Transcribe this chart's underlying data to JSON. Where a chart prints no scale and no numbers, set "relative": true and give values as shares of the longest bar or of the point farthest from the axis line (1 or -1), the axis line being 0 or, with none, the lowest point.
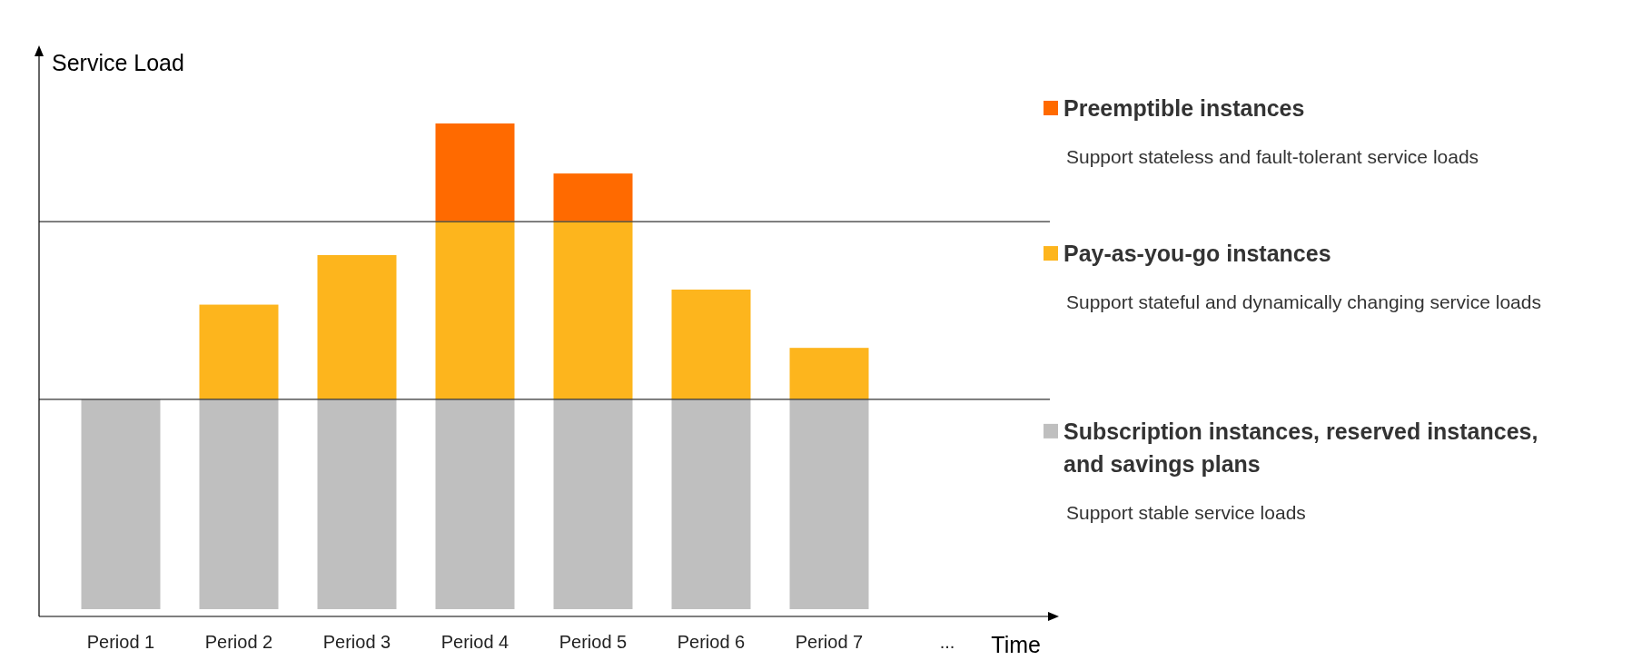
{
  "chart_data": {
    "type": "bar",
    "stacked": true,
    "legend": "right",
    "relative": true,
    "xlabel": "Time",
    "ylabel": "Service Load",
    "categories": [
      "Period 1",
      "Period 2",
      "Period 3",
      "Period 4",
      "Period 5",
      "Period 6",
      "Period 7",
      "..."
    ],
    "series": [
      {
        "name": "Subscription instances, reserved instances, and savings plans",
        "color": "#bfbfbf",
        "values": [
          0.432,
          0.432,
          0.432,
          0.432,
          0.432,
          0.432,
          0.432,
          null
        ]
      },
      {
        "name": "Pay-as-you-go instances",
        "color": "#fdb51d",
        "values": [
          null,
          0.195,
          0.297,
          0.367,
          0.367,
          0.226,
          0.106,
          null
        ]
      },
      {
        "name": "Preemptible instances",
        "color": "#ff6a00",
        "values": [
          null,
          null,
          null,
          0.201,
          0.098,
          null,
          null,
          null
        ]
      }
    ],
    "ref_lines": [
      {
        "axis": "y",
        "value": 0.432,
        "color": "#333333"
      },
      {
        "axis": "y",
        "value": 0.798,
        "color": "#333333"
      }
    ],
    "annotations": [
      "Support stable service loads",
      "Support stateful and dynamically changing service loads",
      "Support stateless and fault-tolerant service loads"
    ]
  }
}
